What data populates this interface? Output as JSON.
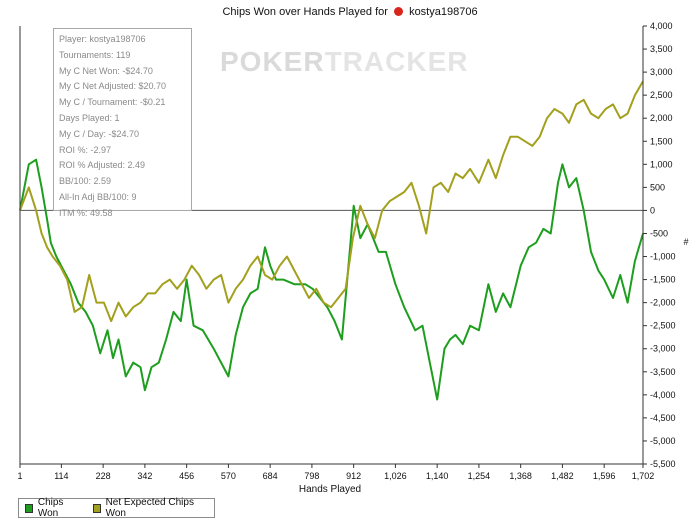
{
  "colors": {
    "chips_won": "#1e9e1e",
    "net_expected": "#a3a01e",
    "axis": "#333333",
    "zero_line": "#555555"
  },
  "header": {
    "title_prefix": "Chips Won over Hands Played for",
    "player": "kostya198706",
    "suit_icon": "diamond-icon"
  },
  "watermark": {
    "part1": "POKER",
    "part2": "TRACKER"
  },
  "stats": [
    "Player: kostya198706",
    "Tournaments: 119",
    "My C Net Won: -$24.70",
    "My C Net Adjusted: $20.70",
    "My C / Tournament: -$0.21",
    "Days Played: 1",
    "My C / Day: -$24.70",
    "ROI %: -2.97",
    "ROI % Adjusted: 2.49",
    "BB/100: 2.59",
    "All-In Adj BB/100: 9",
    "ITM %: 49.58"
  ],
  "legend": {
    "chips_won_label": "Chips Won",
    "net_expected_label": "Net Expected Chips Won"
  },
  "chart_data": {
    "type": "line",
    "title": "Chips Won over Hands Played for kostya198706",
    "xlabel": "Hands Played",
    "ylabel": "#",
    "xlim": [
      1,
      1702
    ],
    "ylim": [
      -5500,
      4000
    ],
    "x_ticks": [
      "1",
      "114",
      "228",
      "342",
      "456",
      "570",
      "684",
      "798",
      "912",
      "1,026",
      "1,140",
      "1,254",
      "1,368",
      "1,482",
      "1,596",
      "1,702"
    ],
    "y_ticks": [
      "4,000",
      "3,500",
      "3,000",
      "2,500",
      "2,000",
      "1,500",
      "1,000",
      "500",
      "0",
      "-500",
      "-1,000",
      "-1,500",
      "-2,000",
      "-2,500",
      "-3,000",
      "-3,500",
      "-4,000",
      "-4,500",
      "-5,000",
      "-5,500"
    ],
    "legend_position": "bottom-left",
    "series": [
      {
        "name": "Chips Won",
        "x": [
          1,
          25,
          45,
          60,
          75,
          85,
          100,
          120,
          140,
          160,
          180,
          200,
          220,
          240,
          255,
          270,
          290,
          310,
          330,
          342,
          360,
          380,
          400,
          420,
          440,
          456,
          475,
          500,
          530,
          550,
          570,
          590,
          610,
          630,
          650,
          670,
          684,
          700,
          720,
          750,
          780,
          800,
          820,
          840,
          860,
          880,
          900,
          912,
          930,
          950,
          980,
          1000,
          1026,
          1050,
          1080,
          1100,
          1120,
          1140,
          1160,
          1175,
          1190,
          1210,
          1230,
          1254,
          1280,
          1300,
          1320,
          1340,
          1368,
          1390,
          1410,
          1430,
          1450,
          1470,
          1482,
          1500,
          1520,
          1540,
          1560,
          1580,
          1596,
          1620,
          1640,
          1660,
          1680,
          1702
        ],
        "values": [
          0,
          1000,
          1100,
          500,
          -200,
          -700,
          -1000,
          -1300,
          -1600,
          -2000,
          -2200,
          -2500,
          -3100,
          -2600,
          -3200,
          -2800,
          -3600,
          -3300,
          -3400,
          -3900,
          -3400,
          -3300,
          -2800,
          -2200,
          -2400,
          -1500,
          -2500,
          -2600,
          -3000,
          -3300,
          -3600,
          -2700,
          -2100,
          -1800,
          -1700,
          -800,
          -1200,
          -1500,
          -1500,
          -1600,
          -1600,
          -1700,
          -1900,
          -2100,
          -2400,
          -2800,
          -1000,
          100,
          -600,
          -300,
          -900,
          -900,
          -1600,
          -2100,
          -2600,
          -2500,
          -3300,
          -4100,
          -3000,
          -2800,
          -2700,
          -2900,
          -2500,
          -2600,
          -1600,
          -2200,
          -1800,
          -2100,
          -1200,
          -800,
          -700,
          -400,
          -500,
          600,
          1000,
          500,
          700,
          0,
          -900,
          -1300,
          -1500,
          -1900,
          -1400,
          -2000,
          -1100,
          -500
        ]
      },
      {
        "name": "Net Expected Chips Won",
        "x": [
          1,
          25,
          45,
          60,
          75,
          90,
          110,
          130,
          150,
          170,
          190,
          210,
          230,
          250,
          270,
          290,
          310,
          330,
          350,
          370,
          390,
          410,
          430,
          450,
          470,
          490,
          510,
          530,
          550,
          570,
          590,
          610,
          630,
          650,
          670,
          690,
          710,
          730,
          750,
          770,
          790,
          810,
          830,
          850,
          870,
          890,
          910,
          930,
          950,
          970,
          990,
          1010,
          1030,
          1050,
          1070,
          1090,
          1110,
          1130,
          1150,
          1170,
          1190,
          1210,
          1230,
          1254,
          1280,
          1300,
          1320,
          1340,
          1360,
          1380,
          1400,
          1420,
          1440,
          1460,
          1482,
          1500,
          1520,
          1540,
          1560,
          1580,
          1600,
          1620,
          1640,
          1660,
          1680,
          1702
        ],
        "values": [
          0,
          500,
          0,
          -500,
          -800,
          -1000,
          -1200,
          -1500,
          -2200,
          -2100,
          -1400,
          -2000,
          -2000,
          -2400,
          -2000,
          -2300,
          -2100,
          -2000,
          -1800,
          -1800,
          -1600,
          -1500,
          -1700,
          -1500,
          -1200,
          -1400,
          -1700,
          -1500,
          -1400,
          -2000,
          -1700,
          -1500,
          -1200,
          -1000,
          -1400,
          -1500,
          -1200,
          -1000,
          -1300,
          -1600,
          -1900,
          -1700,
          -2000,
          -2100,
          -1900,
          -1700,
          -600,
          100,
          -300,
          -600,
          0,
          200,
          300,
          400,
          600,
          100,
          -500,
          500,
          600,
          400,
          800,
          700,
          900,
          600,
          1100,
          700,
          1200,
          1600,
          1600,
          1500,
          1400,
          1600,
          2000,
          2200,
          2100,
          1900,
          2300,
          2400,
          2100,
          2000,
          2200,
          2300,
          2000,
          2100,
          2500,
          2800
        ]
      }
    ]
  }
}
